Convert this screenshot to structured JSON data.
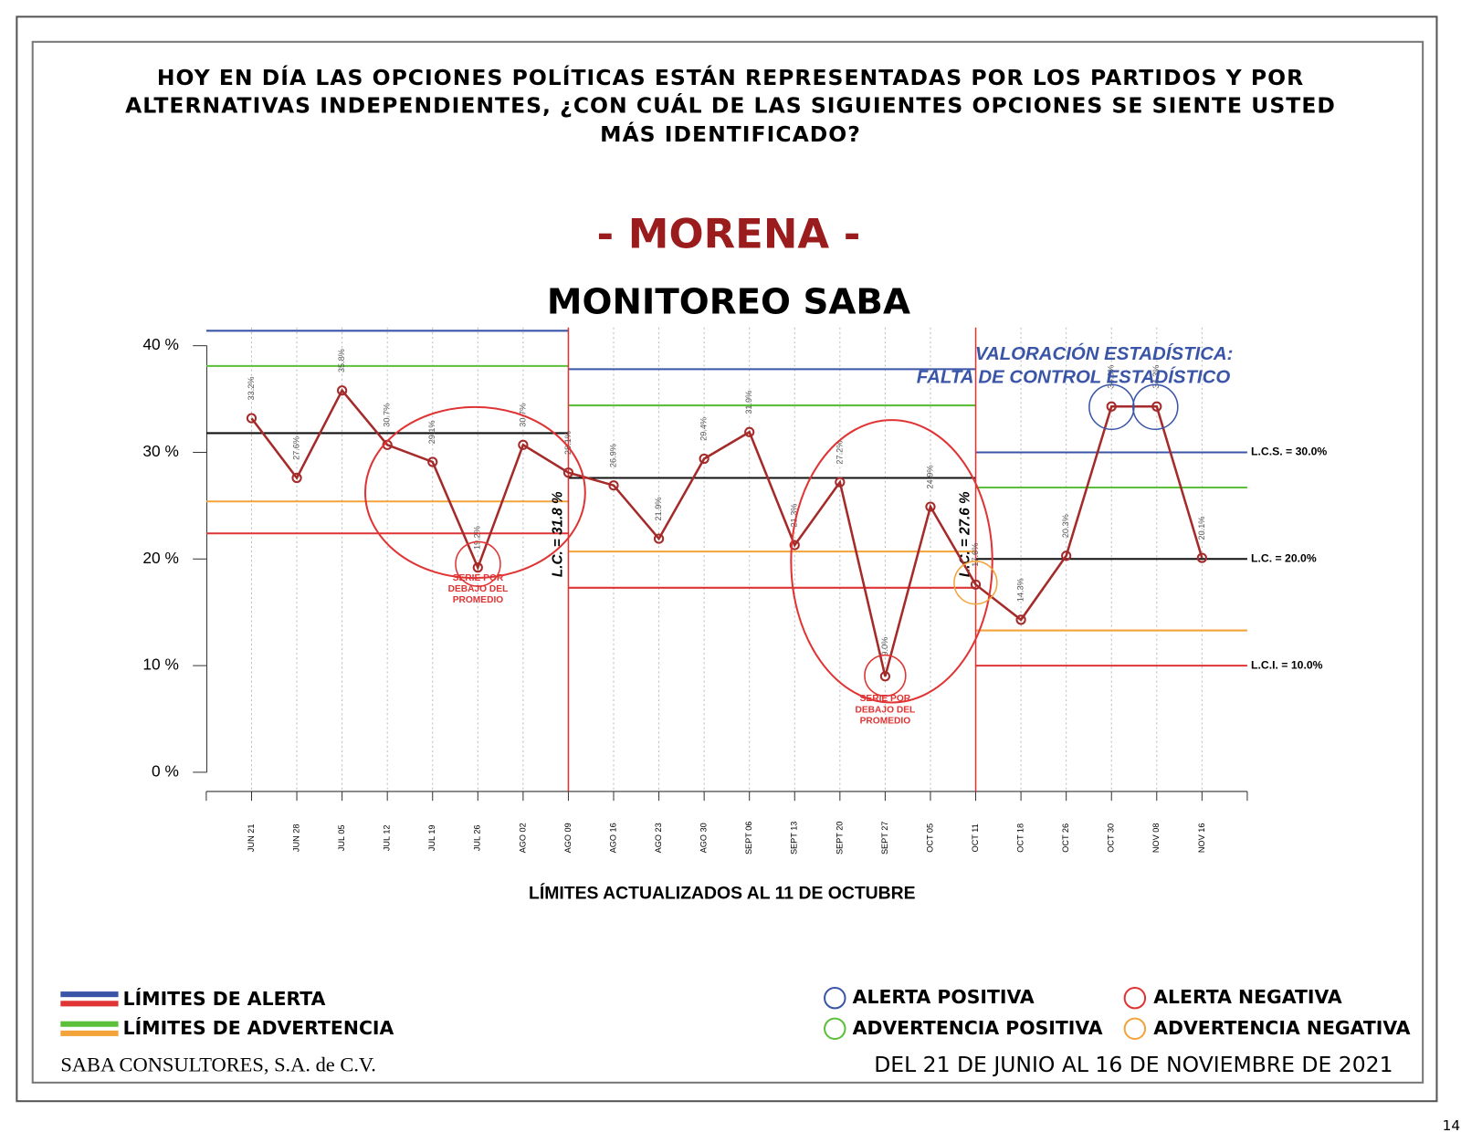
{
  "header": {
    "question": [
      "HOY EN DÍA LAS OPCIONES POLÍTICAS ESTÁN REPRESENTADAS POR LOS PARTIDOS Y POR",
      "ALTERNATIVAS INDEPENDIENTES, ¿CON CUÁL DE LAS SIGUIENTES OPCIONES SE SIENTE USTED",
      "MÁS IDENTIFICADO?"
    ],
    "party": "- MORENA -"
  },
  "chart_data": {
    "type": "line",
    "title": "MONITOREO SABA",
    "categories": [
      "JUN 21",
      "JUN 28",
      "JUL 05",
      "JUL 12",
      "JUL 19",
      "JUL 26",
      "AGO 02",
      "AGO 09",
      "AGO 16",
      "AGO 23",
      "AGO 30",
      "SEPT 06",
      "SEPT 13",
      "SEPT 20",
      "SEPT 27",
      "OCT 05",
      "OCT 11",
      "OCT 18",
      "OCT 26",
      "OCT 30",
      "NOV 08",
      "NOV 16"
    ],
    "values": [
      33.2,
      27.6,
      35.8,
      30.7,
      29.1,
      19.2,
      30.7,
      28.1,
      26.9,
      21.9,
      29.4,
      31.9,
      21.3,
      27.2,
      9.0,
      24.9,
      17.6,
      14.3,
      20.3,
      34.3,
      34.3,
      20.1
    ],
    "value_labels": [
      "33.2%",
      "27.6%",
      "35.8%",
      "30.7%",
      "29.1%",
      "19.2%",
      "30.7%",
      "28.1%",
      "26.9%",
      "21.9%",
      "29.4%",
      "31.9%",
      "21.3%",
      "27.2%",
      "9.0%",
      "24.9%",
      "17.6%",
      "14.3%",
      "20.3%",
      "34.3%",
      "34.3%",
      "20.1%"
    ],
    "color": "#a52a2a",
    "ylim": [
      -1.8,
      41.7
    ],
    "yticks": [
      {
        "value": 0,
        "label": "0 %"
      },
      {
        "value": 10,
        "label": "10 %"
      },
      {
        "value": 20,
        "label": "20 %"
      },
      {
        "value": 30,
        "label": "30 %"
      },
      {
        "value": 40,
        "label": "40 %"
      }
    ],
    "grid": true,
    "segment_breaks": [
      "AGO 09",
      "OCT 11"
    ],
    "limit_colors": {
      "ucl_alert": "#3a55a8",
      "ucl_warning": "#5cbf3a",
      "center": "#111111",
      "lcl_warning": "#f2a33a",
      "lcl_alert": "#e03434"
    },
    "segments": [
      {
        "ucl_alert": 41.4,
        "ucl_warning": 38.1,
        "center": 31.8,
        "lcl_warning": 25.4,
        "lcl_alert": 22.4,
        "labels": {
          "center": "L.C. = 31.8 %"
        }
      },
      {
        "ucl_alert": 37.8,
        "ucl_warning": 34.4,
        "center": 27.6,
        "lcl_warning": 20.7,
        "lcl_alert": 17.3,
        "labels": {
          "center": "L.C. = 27.6 %"
        }
      },
      {
        "ucl_alert": 30.0,
        "ucl_warning": 26.7,
        "center": 20.0,
        "lcl_warning": 13.3,
        "lcl_alert": 10.0,
        "labels": {
          "ucl_alert": "L.C.S. = 30.0%",
          "center": "L.C. = 20.0%",
          "lcl_alert": "L.C.I. = 10.0%"
        }
      }
    ],
    "annotations": [
      [
        "SERIE POR",
        "DEBAJO DEL",
        "PROMEDIO"
      ],
      [
        "SERIE POR",
        "DEBAJO DEL",
        "PROMEDIO"
      ]
    ],
    "valuation": [
      "VALORACIÓN ESTADÍSTICA:",
      "FALTA DE CONTROL ESTADÍSTICO"
    ],
    "note": "LÍMITES ACTUALIZADOS AL  11  DE  OCTUBRE"
  },
  "legend": {
    "limits": [
      "LÍMITES DE ALERTA",
      "LÍMITES DE ADVERTENCIA"
    ],
    "alerts": [
      "ALERTA POSITIVA",
      "ALERTA NEGATIVA",
      "ADVERTENCIA POSITIVA",
      "ADVERTENCIA NEGATIVA"
    ]
  },
  "footer": {
    "company": "SABA CONSULTORES, S.A. de C.V.",
    "period": "DEL 21 DE JUNIO AL 16 DE NOVIEMBRE DE 2021",
    "page": "14"
  }
}
